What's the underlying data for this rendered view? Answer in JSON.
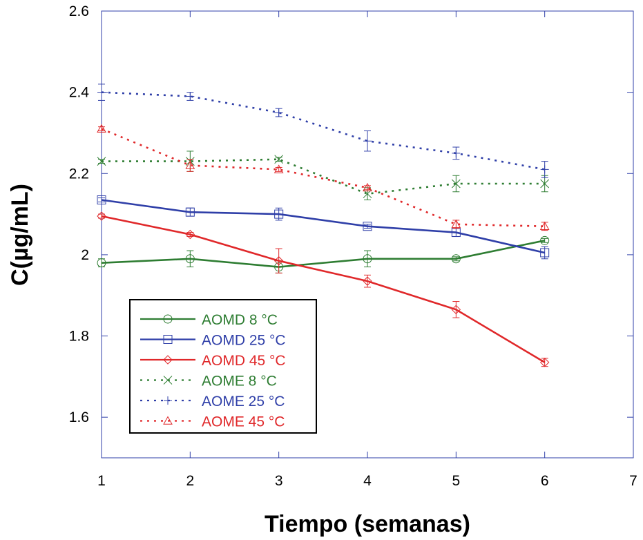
{
  "chart_data": {
    "type": "line",
    "title": "",
    "xlabel": "Tiempo (semanas)",
    "ylabel": "C(µg/mL)",
    "xlim": [
      1,
      7
    ],
    "ylim": [
      1.5,
      2.6
    ],
    "xticks": [
      "1",
      "2",
      "3",
      "4",
      "5",
      "6",
      "7"
    ],
    "yticks": [
      "1.6",
      "1.8",
      "2",
      "2.2",
      "2.4",
      "2.6"
    ],
    "grid": false,
    "legend_position": "bottom-left",
    "x": [
      1,
      2,
      3,
      4,
      5,
      6
    ],
    "series": [
      {
        "name": "AOMD 8 °C",
        "color": "#2e7d32",
        "dash": "solid",
        "marker": "circle",
        "values": [
          1.98,
          1.99,
          1.97,
          1.99,
          1.99,
          2.035
        ],
        "errors": [
          0.01,
          0.02,
          0.015,
          0.02,
          0.005,
          0.005
        ]
      },
      {
        "name": "AOMD 25 °C",
        "color": "#2f3fa8",
        "dash": "solid",
        "marker": "square",
        "values": [
          2.135,
          2.105,
          2.1,
          2.07,
          2.055,
          2.005
        ],
        "errors": [
          0.005,
          0.01,
          0.015,
          0.005,
          0.01,
          0.015
        ]
      },
      {
        "name": "AOMD 45 °C",
        "color": "#e0282a",
        "dash": "solid",
        "marker": "diamond",
        "values": [
          2.095,
          2.05,
          1.985,
          1.935,
          1.865,
          1.735
        ],
        "errors": [
          0.005,
          0.005,
          0.03,
          0.015,
          0.02,
          0.01
        ]
      },
      {
        "name": "AOME 8 °C",
        "color": "#2e7d32",
        "dash": "dotted",
        "marker": "x",
        "values": [
          2.23,
          2.23,
          2.235,
          2.15,
          2.175,
          2.175
        ],
        "errors": [
          0.005,
          0.025,
          0.005,
          0.015,
          0.02,
          0.02
        ]
      },
      {
        "name": "AOME 25 °C",
        "color": "#2f3fa8",
        "dash": "dotted",
        "marker": "plus",
        "values": [
          2.4,
          2.39,
          2.35,
          2.28,
          2.25,
          2.21
        ],
        "errors": [
          0.02,
          0.01,
          0.01,
          0.025,
          0.015,
          0.02
        ]
      },
      {
        "name": "AOME 45 °C",
        "color": "#e0282a",
        "dash": "dotted",
        "marker": "triangle",
        "values": [
          2.31,
          2.22,
          2.21,
          2.165,
          2.075,
          2.07
        ],
        "errors": [
          0.005,
          0.015,
          0.005,
          0.005,
          0.01,
          0.01
        ]
      }
    ]
  }
}
